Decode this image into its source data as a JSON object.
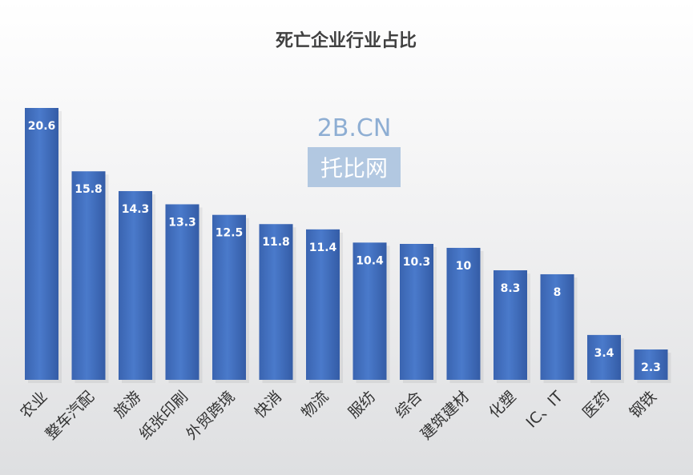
{
  "chart_data": {
    "type": "bar",
    "title": "死亡企业行业占比",
    "categories": [
      "农业",
      "整车汽配",
      "旅游",
      "纸张印刷",
      "外贸跨境",
      "快消",
      "物流",
      "服纺",
      "综合",
      "建筑建材",
      "化塑",
      "IC、IT",
      "医药",
      "钢铁"
    ],
    "values": [
      20.6,
      15.8,
      14.3,
      13.3,
      12.5,
      11.8,
      11.4,
      10.4,
      10.3,
      10,
      8.3,
      8,
      3.4,
      2.3
    ],
    "value_labels": [
      "20.6",
      "15.8",
      "14.3",
      "13.3",
      "12.5",
      "11.8",
      "11.4",
      "10.4",
      "10.3",
      "10",
      "8.3",
      "8",
      "3.4",
      "2.3"
    ],
    "xlabel": "",
    "ylabel": "",
    "ylim": [
      0,
      22
    ],
    "grid": false,
    "legend": "none",
    "bar_color": "#4472c4"
  },
  "watermark": {
    "line1": "2B.CN",
    "line2": "托比网"
  }
}
